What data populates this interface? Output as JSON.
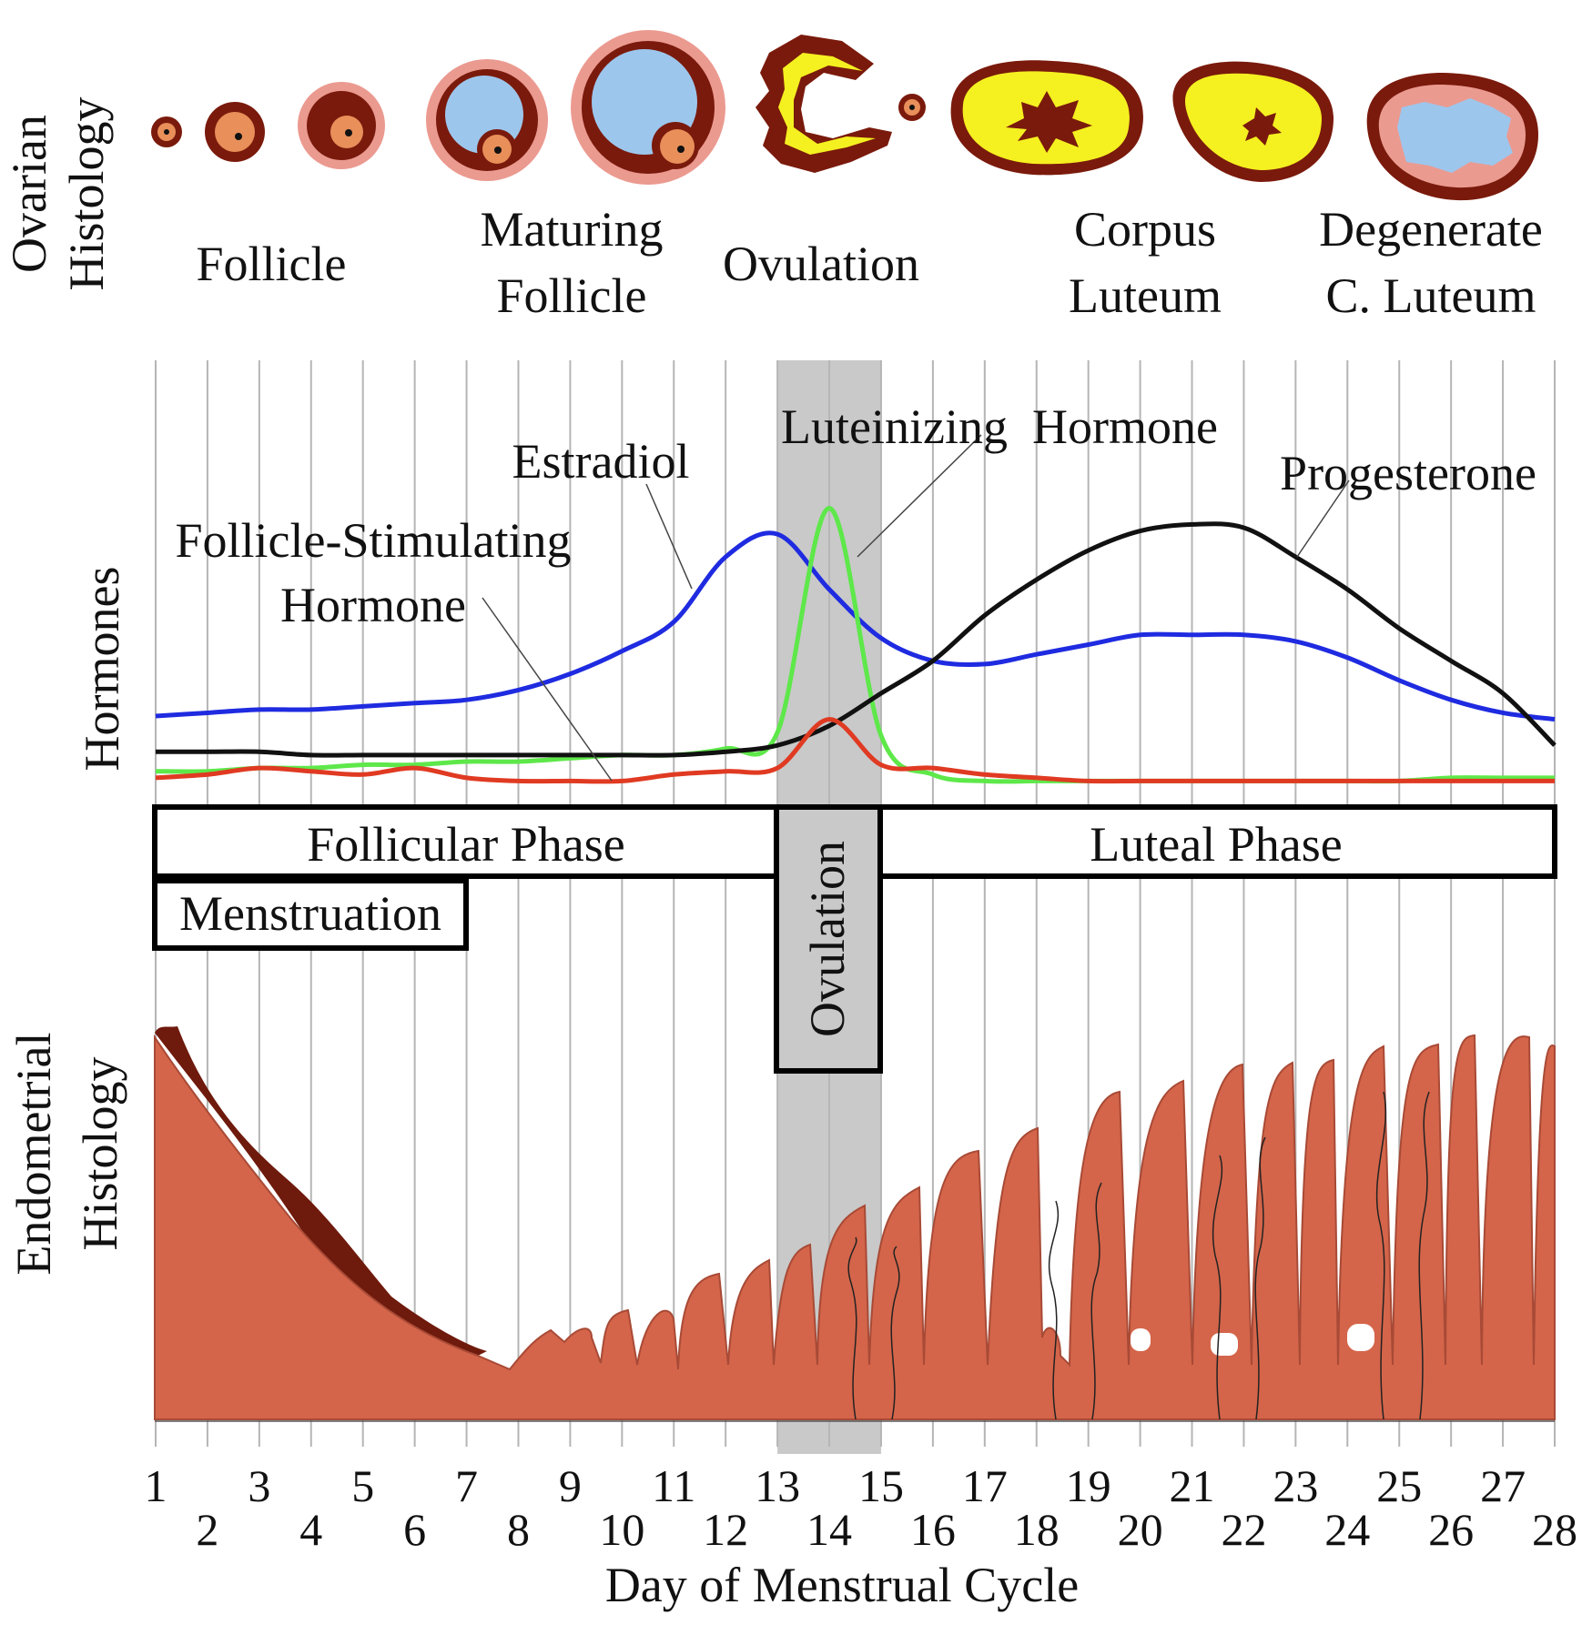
{
  "colors": {
    "estradiol": "#1f2be0",
    "luteinizing_hormone": "#5ee84a",
    "progesterone": "#111111",
    "follicle_stimulating_hormone": "#e03a22",
    "ovulation_band": "#c9c9c9",
    "endometrium": "#d4654a",
    "endometrium_dark": "#6e1a0c",
    "corpus_yellow": "#f5f020",
    "antrum_blue": "#9dc6ec",
    "follicle_dark": "#7a1a0c",
    "follicle_pink": "#eb9a90"
  },
  "ovarian": {
    "axis_label_line1": "Ovarian",
    "axis_label_line2": "Histology",
    "follicle": "Follicle",
    "maturing_line1": "Maturing",
    "maturing_line2": "Follicle",
    "ovulation": "Ovulation",
    "corpus_line1": "Corpus",
    "corpus_line2": "Luteum",
    "degenerate_line1": "Degenerate",
    "degenerate_line2": "C. Luteum"
  },
  "hormones": {
    "axis_label": "Hormones",
    "estradiol": "Estradiol",
    "luteinizing": "Luteinizing  Hormone",
    "progesterone": "Progesterone",
    "fsh_line1": "Follicle-Stimulating",
    "fsh_line2": "Hormone"
  },
  "phases": {
    "follicular": "Follicular Phase",
    "luteal": "Luteal Phase",
    "menstruation": "Menstruation",
    "ovulation": "Ovulation"
  },
  "endometrial": {
    "axis_label_line1": "Endometrial",
    "axis_label_line2": "Histology"
  },
  "x_axis": {
    "title": "Day of Menstrual Cycle",
    "days": [
      "1",
      "2",
      "3",
      "4",
      "5",
      "6",
      "7",
      "8",
      "9",
      "10",
      "11",
      "12",
      "13",
      "14",
      "15",
      "16",
      "17",
      "18",
      "19",
      "20",
      "21",
      "22",
      "23",
      "24",
      "25",
      "26",
      "27",
      "28"
    ]
  },
  "chart_data": {
    "type": "line",
    "title": "",
    "xlabel": "Day of Menstrual Cycle",
    "ylabel": "Hormones",
    "xlim": [
      1,
      28
    ],
    "ylim": [
      0,
      100
    ],
    "x": [
      1,
      2,
      3,
      4,
      5,
      6,
      7,
      8,
      9,
      10,
      11,
      12,
      13,
      14,
      15,
      16,
      17,
      18,
      19,
      20,
      21,
      22,
      23,
      24,
      25,
      26,
      27,
      28
    ],
    "series": [
      {
        "name": "Estradiol",
        "color_key": "estradiol",
        "values": [
          21,
          22,
          23,
          23,
          24,
          25,
          26,
          29,
          34,
          41,
          50,
          70,
          77,
          60,
          45,
          38,
          37,
          40,
          43,
          46,
          46,
          46,
          44,
          39,
          32,
          26,
          22,
          20
        ]
      },
      {
        "name": "Luteinizing  Hormone",
        "color_key": "luteinizing_hormone",
        "values": [
          4,
          4,
          5,
          5,
          6,
          6,
          7,
          7,
          8,
          9,
          9,
          11,
          16,
          85,
          15,
          3,
          1,
          1,
          1,
          1,
          1,
          1,
          1,
          1,
          1,
          2,
          2,
          2
        ]
      },
      {
        "name": "Progesterone",
        "color_key": "progesterone",
        "values": [
          10,
          10,
          10,
          9,
          9,
          9,
          9,
          9,
          9,
          9,
          9,
          10,
          12,
          18,
          28,
          38,
          52,
          63,
          72,
          78,
          80,
          79,
          70,
          60,
          48,
          38,
          28,
          12
        ]
      },
      {
        "name": "Follicle-Stimulating Hormone",
        "color_key": "follicle_stimulating_hormone",
        "values": [
          2,
          3,
          5,
          4,
          3,
          5,
          2,
          1,
          1,
          1,
          3,
          4,
          5,
          20,
          6,
          5,
          3,
          2,
          1,
          1,
          1,
          1,
          1,
          1,
          1,
          1,
          1,
          1
        ]
      }
    ],
    "shaded_region_days": [
      13,
      15
    ]
  }
}
